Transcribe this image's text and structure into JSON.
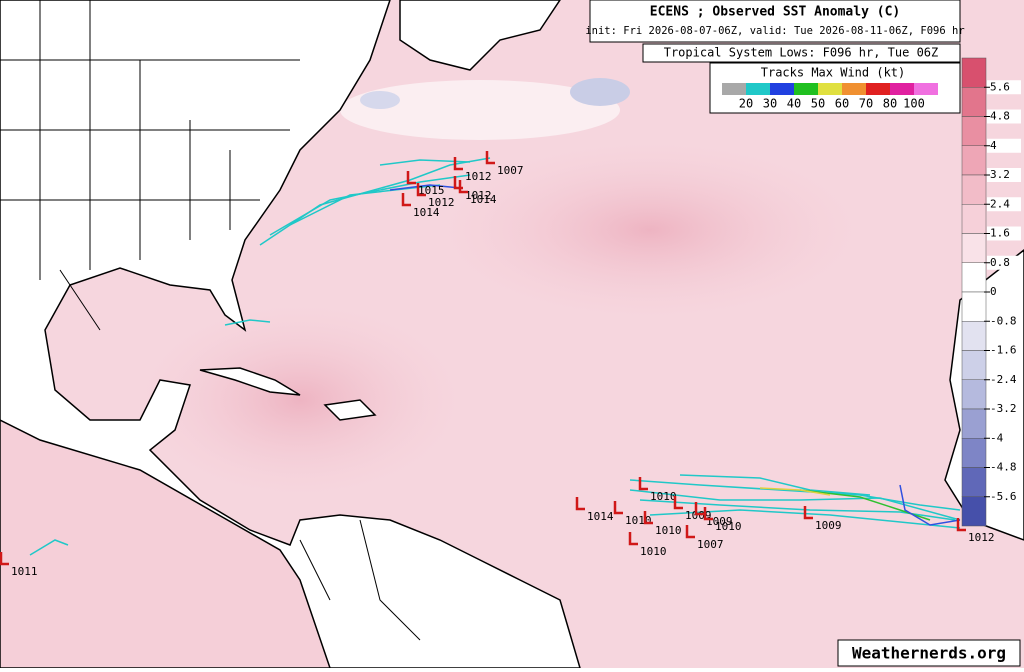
{
  "header": {
    "title": "ECENS ; Observed SST Anomaly (C)",
    "subtitle": "init: Fri 2026-08-07-06Z, valid: Tue 2026-08-11-06Z, F096 hr"
  },
  "lows_title": "Tropical System Lows: F096 hr, Tue 06Z",
  "legend": {
    "title": "Tracks Max Wind (kt)",
    "labels": [
      20,
      30,
      40,
      50,
      60,
      70,
      80,
      100
    ]
  },
  "colorbar": {
    "ticks": [
      5.6,
      4.8,
      4,
      3.2,
      2.4,
      1.6,
      0.8,
      0,
      -0.8,
      -1.6,
      -2.4,
      -3.2,
      -4,
      -4.8,
      -5.6
    ]
  },
  "lows": [
    "1007",
    "1012",
    "1015",
    "1012",
    "1012",
    "1014",
    "1014",
    "1010",
    "1014",
    "1010",
    "1009",
    "1009",
    "1010",
    "1010",
    "1007",
    "1010",
    "1009",
    "1011",
    "1012"
  ],
  "watermark": "Weathernerds.org"
}
